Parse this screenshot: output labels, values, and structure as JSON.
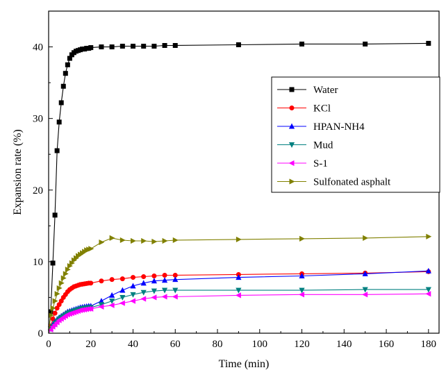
{
  "chart_data": {
    "type": "line",
    "xlabel": "Time (min)",
    "ylabel": "Expansion rate (%)",
    "xlim": [
      0,
      185
    ],
    "ylim": [
      0,
      45
    ],
    "xticks": [
      0,
      20,
      40,
      60,
      80,
      100,
      120,
      140,
      160,
      180
    ],
    "yticks": [
      0,
      10,
      20,
      30,
      40
    ],
    "grid": false,
    "legend_position": "right",
    "series": [
      {
        "name": "Water",
        "color": "#000000",
        "marker": "square",
        "x": [
          0,
          1,
          2,
          3,
          4,
          5,
          6,
          7,
          8,
          9,
          10,
          11,
          12,
          13,
          14,
          15,
          16,
          17,
          18,
          19,
          20,
          25,
          30,
          35,
          40,
          45,
          50,
          55,
          60,
          90,
          120,
          150,
          180
        ],
        "y": [
          0,
          3.0,
          9.8,
          16.5,
          25.5,
          29.5,
          32.2,
          34.5,
          36.3,
          37.5,
          38.4,
          38.9,
          39.2,
          39.4,
          39.5,
          39.6,
          39.7,
          39.7,
          39.8,
          39.8,
          39.9,
          40.0,
          40.0,
          40.1,
          40.1,
          40.1,
          40.1,
          40.2,
          40.2,
          40.3,
          40.4,
          40.4,
          40.5
        ]
      },
      {
        "name": "KCl",
        "color": "#ff0000",
        "marker": "circle",
        "x": [
          0,
          1,
          2,
          3,
          4,
          5,
          6,
          7,
          8,
          9,
          10,
          11,
          12,
          13,
          14,
          15,
          16,
          17,
          18,
          19,
          20,
          25,
          30,
          35,
          40,
          45,
          50,
          55,
          60,
          90,
          120,
          150,
          180
        ],
        "y": [
          0,
          1.0,
          2.0,
          2.8,
          3.5,
          4.0,
          4.5,
          5.0,
          5.4,
          5.8,
          6.1,
          6.3,
          6.5,
          6.6,
          6.7,
          6.8,
          6.85,
          6.9,
          6.95,
          7.0,
          7.0,
          7.3,
          7.5,
          7.6,
          7.8,
          7.9,
          8.0,
          8.1,
          8.1,
          8.2,
          8.3,
          8.4,
          8.6
        ]
      },
      {
        "name": "HPAN-NH4",
        "color": "#0000ff",
        "marker": "triangle-up",
        "x": [
          0,
          1,
          2,
          3,
          4,
          5,
          6,
          7,
          8,
          9,
          10,
          11,
          12,
          13,
          14,
          15,
          16,
          17,
          18,
          19,
          20,
          25,
          30,
          35,
          40,
          45,
          50,
          55,
          60,
          90,
          120,
          150,
          180
        ],
        "y": [
          0,
          0.7,
          1.2,
          1.6,
          1.9,
          2.2,
          2.4,
          2.6,
          2.8,
          3.0,
          3.1,
          3.2,
          3.3,
          3.4,
          3.5,
          3.6,
          3.65,
          3.7,
          3.75,
          3.8,
          3.8,
          4.5,
          5.3,
          6.0,
          6.6,
          7.0,
          7.3,
          7.4,
          7.5,
          7.8,
          8.0,
          8.3,
          8.7
        ]
      },
      {
        "name": "Mud",
        "color": "#008080",
        "marker": "triangle-down",
        "x": [
          0,
          1,
          2,
          3,
          4,
          5,
          6,
          7,
          8,
          9,
          10,
          11,
          12,
          13,
          14,
          15,
          16,
          17,
          18,
          19,
          20,
          25,
          30,
          35,
          40,
          45,
          50,
          55,
          60,
          90,
          120,
          150,
          180
        ],
        "y": [
          0,
          0.6,
          1.0,
          1.4,
          1.7,
          2.0,
          2.2,
          2.4,
          2.6,
          2.8,
          2.9,
          3.0,
          3.1,
          3.2,
          3.3,
          3.4,
          3.45,
          3.5,
          3.55,
          3.6,
          3.6,
          4.0,
          4.5,
          5.0,
          5.4,
          5.7,
          5.9,
          6.0,
          6.0,
          6.0,
          6.0,
          6.1,
          6.1
        ]
      },
      {
        "name": "S-1",
        "color": "#ff00ff",
        "marker": "triangle-left",
        "x": [
          0,
          1,
          2,
          3,
          4,
          5,
          6,
          7,
          8,
          9,
          10,
          11,
          12,
          13,
          14,
          15,
          16,
          17,
          18,
          19,
          20,
          25,
          30,
          35,
          40,
          45,
          50,
          55,
          60,
          90,
          120,
          150,
          180
        ],
        "y": [
          0,
          0.5,
          0.9,
          1.2,
          1.5,
          1.8,
          2.0,
          2.2,
          2.4,
          2.6,
          2.7,
          2.8,
          2.9,
          3.0,
          3.1,
          3.2,
          3.25,
          3.3,
          3.35,
          3.4,
          3.4,
          3.7,
          3.9,
          4.2,
          4.5,
          4.8,
          5.0,
          5.1,
          5.1,
          5.3,
          5.4,
          5.4,
          5.5
        ]
      },
      {
        "name": "Sulfonated asphalt",
        "color": "#808000",
        "marker": "triangle-right",
        "x": [
          0,
          1,
          2,
          3,
          4,
          5,
          6,
          7,
          8,
          9,
          10,
          11,
          12,
          13,
          14,
          15,
          16,
          17,
          18,
          19,
          20,
          25,
          30,
          35,
          40,
          45,
          50,
          55,
          60,
          90,
          120,
          150,
          180
        ],
        "y": [
          0,
          2.5,
          3.5,
          4.5,
          5.5,
          6.3,
          7.0,
          7.7,
          8.3,
          8.9,
          9.4,
          9.8,
          10.2,
          10.5,
          10.8,
          11.0,
          11.2,
          11.4,
          11.6,
          11.7,
          11.8,
          12.7,
          13.3,
          13.0,
          12.9,
          12.9,
          12.8,
          12.9,
          13.0,
          13.1,
          13.2,
          13.3,
          13.5
        ]
      }
    ]
  }
}
